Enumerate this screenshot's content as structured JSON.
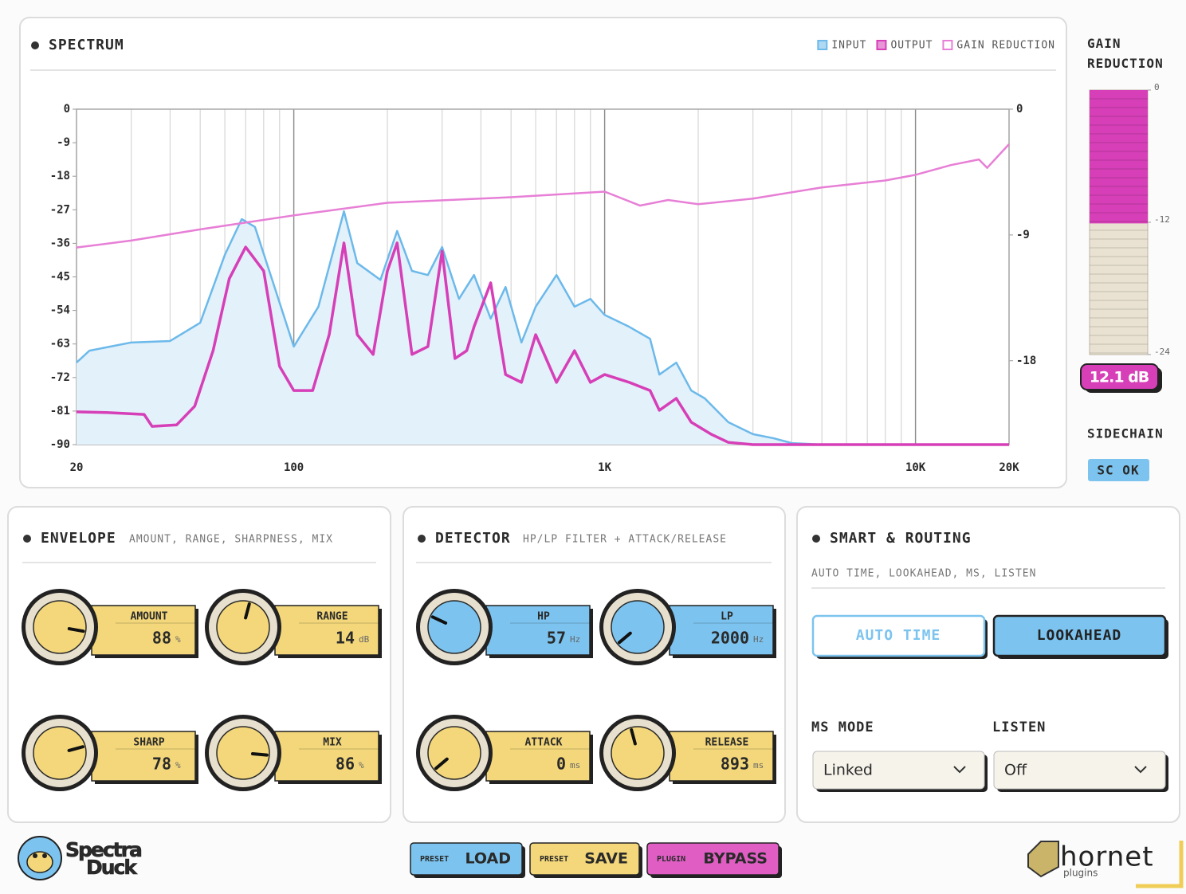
{
  "chart_data": [
    {
      "type": "line",
      "title": "SPECTRUM",
      "xscale": "log",
      "grid": "x",
      "legend": "top-right",
      "xlim": [
        20,
        20000
      ],
      "xticks": [
        20,
        100,
        {
          "value": 1000,
          "label": "1K"
        },
        {
          "value": 10000,
          "label": "10K"
        },
        {
          "value": 20000,
          "label": "20K"
        }
      ],
      "ylim": [
        -90,
        0
      ],
      "yticks": [
        0,
        -9,
        -18,
        -27,
        -36,
        -45,
        -54,
        -63,
        -72,
        -81,
        -90
      ],
      "y2lim": [
        -24,
        0
      ],
      "y2ticks": [
        0,
        -9,
        -18
      ],
      "series": [
        {
          "name": "INPUT",
          "color": "#6cb9ea",
          "fill": "#e3f1fb",
          "x": [
            20,
            22,
            30,
            40,
            50,
            60,
            68,
            75,
            85,
            100,
            120,
            145,
            160,
            190,
            215,
            240,
            270,
            300,
            340,
            380,
            430,
            480,
            540,
            600,
            700,
            800,
            900,
            1000,
            1200,
            1400,
            1500,
            1700,
            1900,
            2100,
            2500,
            3000,
            3500,
            4000,
            5000,
            20000
          ],
          "values": [
            -68,
            -64.8,
            -62.6,
            -62.2,
            -57.3,
            -39.1,
            -29.5,
            -31.6,
            -45.5,
            -63.7,
            -53,
            -27.4,
            -41.3,
            -45.8,
            -32.7,
            -43.4,
            -44.5,
            -37,
            -50.9,
            -44.5,
            -56.2,
            -47.7,
            -62.6,
            -53,
            -44.5,
            -53,
            -50.9,
            -55.2,
            -58.4,
            -61.6,
            -71.2,
            -68,
            -75.5,
            -77.6,
            -84,
            -87.2,
            -88.3,
            -89.6,
            -90,
            -90
          ]
        },
        {
          "name": "OUTPUT",
          "color": "#d63fb7",
          "x": [
            20,
            25,
            33,
            35,
            42,
            48,
            55,
            62,
            70,
            80,
            90,
            100,
            115,
            130,
            145,
            160,
            180,
            200,
            215,
            240,
            270,
            300,
            330,
            360,
            380,
            430,
            480,
            540,
            600,
            700,
            800,
            900,
            1000,
            1200,
            1400,
            1500,
            1700,
            1900,
            2200,
            2500,
            3000,
            20000
          ],
          "values": [
            -81.2,
            -81.4,
            -81.9,
            -85.1,
            -84.7,
            -79.7,
            -64.8,
            -45.5,
            -37,
            -43.4,
            -69,
            -75.5,
            -75.5,
            -60.5,
            -35.9,
            -60.5,
            -65.8,
            -43.4,
            -35.9,
            -65.8,
            -63.7,
            -38.1,
            -66.9,
            -64.8,
            -58.4,
            -46.6,
            -71.2,
            -73.3,
            -60.5,
            -73.3,
            -64.8,
            -73.3,
            -71.2,
            -73.3,
            -75.5,
            -80.8,
            -77.6,
            -84,
            -87.2,
            -89.4,
            -90,
            -90
          ]
        },
        {
          "name": "GAIN REDUCTION",
          "color": "#e77fd6",
          "axis": "y2",
          "x": [
            20,
            30,
            50,
            100,
            200,
            500,
            1000,
            1300,
            1600,
            2000,
            3000,
            5000,
            8000,
            10000,
            13000,
            16000,
            17000,
            20000
          ],
          "values": [
            -9.9,
            -9.4,
            -8.6,
            -7.6,
            -6.7,
            -6.3,
            -5.9,
            -6.9,
            -6.5,
            -6.8,
            -6.4,
            -5.6,
            -5.1,
            -4.7,
            -4,
            -3.6,
            -4.2,
            -2.5
          ]
        }
      ]
    },
    {
      "type": "meter",
      "title": "GAIN REDUCTION",
      "ylim": [
        0,
        -24
      ],
      "yticks": [
        0,
        -12,
        -24
      ],
      "values": [
        -12.1
      ],
      "color": "#d63fb7",
      "track": "#e9e2d2",
      "readout": "12.1 dB"
    }
  ],
  "sidechain": {
    "title": "SIDECHAIN",
    "status": "SC OK"
  },
  "envelope": {
    "title": "ENVELOPE",
    "subtitle": "AMOUNT, RANGE, SHARPNESS, MIX",
    "knobs": [
      {
        "label": "AMOUNT",
        "value": 88,
        "unit": "%"
      },
      {
        "label": "RANGE",
        "value": 14,
        "unit": "dB"
      },
      {
        "label": "SHARP",
        "value": 78,
        "unit": "%"
      },
      {
        "label": "MIX",
        "value": 86,
        "unit": "%"
      }
    ]
  },
  "detector": {
    "title": "DETECTOR",
    "subtitle": "HP/LP FILTER + ATTACK/RELEASE",
    "knobs": [
      {
        "label": "HP",
        "value": 57,
        "unit": "Hz"
      },
      {
        "label": "LP",
        "value": 2000,
        "unit": "Hz"
      },
      {
        "label": "ATTACK",
        "value": 0,
        "unit": "ms"
      },
      {
        "label": "RELEASE",
        "value": 893,
        "unit": "ms"
      }
    ]
  },
  "smart": {
    "title": "SMART & ROUTING",
    "subtitle": "AUTO TIME, LOOKAHEAD, MS, LISTEN",
    "buttons": [
      "AUTO TIME",
      "LOOKAHEAD"
    ],
    "selects": [
      {
        "label": "MS MODE",
        "value": "Linked"
      },
      {
        "label": "LISTEN",
        "value": "Off"
      }
    ]
  },
  "footer": {
    "logo": [
      "Spectra",
      "Duck"
    ],
    "buttons": [
      {
        "prefix": "PRESET",
        "label": "LOAD"
      },
      {
        "prefix": "PRESET",
        "label": "SAVE"
      },
      {
        "prefix": "PLUGIN",
        "label": "BYPASS"
      }
    ],
    "brand": "hornet",
    "brand_sub": "plugins"
  }
}
